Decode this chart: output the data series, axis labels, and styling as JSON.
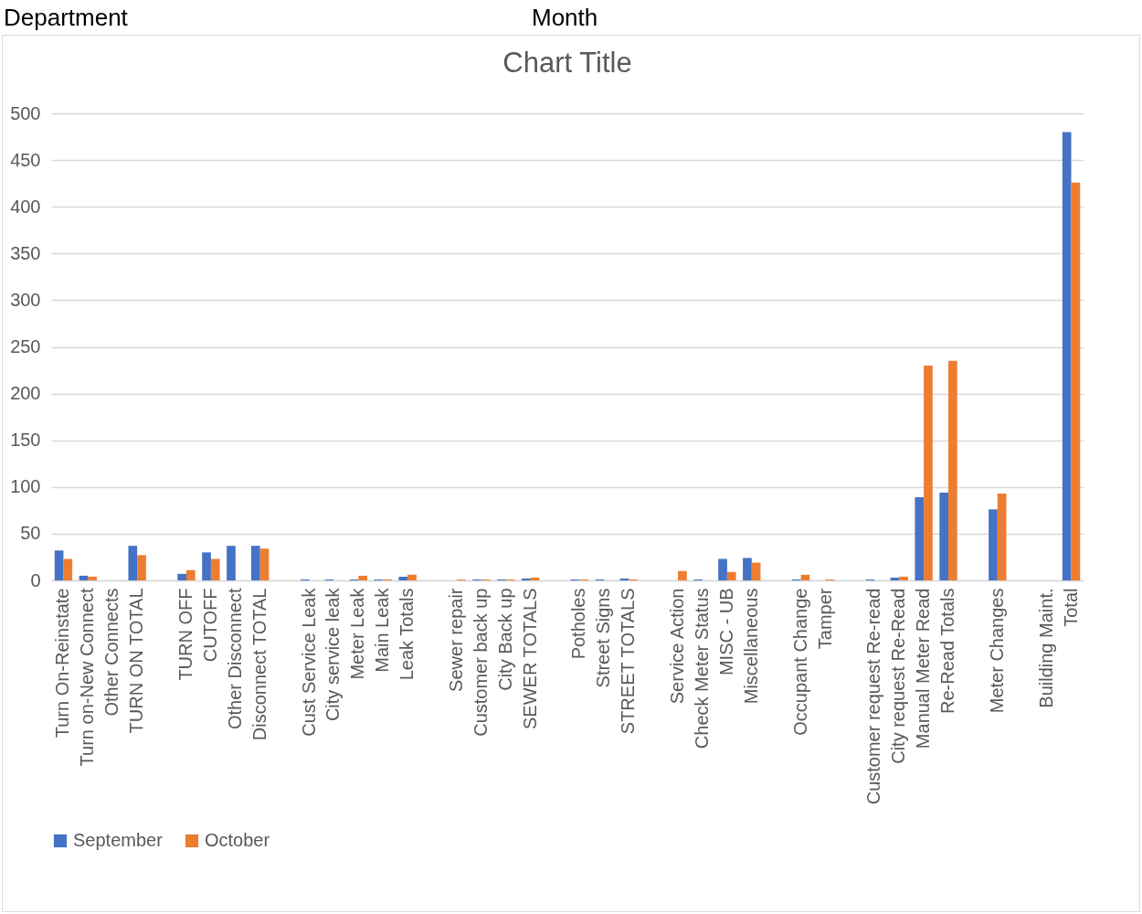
{
  "chart_data": {
    "type": "bar",
    "title": "Chart Title",
    "annotations": [
      "Department",
      "Month"
    ],
    "categories": [
      "Turn On-Reinstate",
      "Turn on-New Connect",
      "Other Connects",
      "TURN ON TOTAL",
      null,
      "TURN OFF",
      "CUTOFF",
      "Other Disconnect",
      "Disconnect TOTAL",
      null,
      "Cust Service Leak",
      "City service leak",
      "Meter Leak",
      "Main Leak",
      "Leak Totals",
      null,
      "Sewer repair",
      "Customer back up",
      "City Back up",
      "SEWER TOTALS",
      null,
      "Potholes",
      "Street Signs",
      "STREET TOTALS",
      null,
      "Service Action",
      "Check Meter Status",
      "MISC - UB",
      "Miscellaneous",
      null,
      "Occupant Change",
      "Tamper",
      null,
      "Customer request Re-read",
      "City request Re-Read",
      "Manual Meter Read",
      "Re-Read Totals",
      null,
      "Meter Changes",
      null,
      "Building Maint.",
      "Total"
    ],
    "series": [
      {
        "name": "September",
        "color": "#4472c4",
        "values": [
          32,
          5,
          0,
          37,
          null,
          7,
          30,
          37,
          37,
          null,
          1,
          1,
          1,
          1,
          4,
          null,
          0,
          1,
          1,
          2,
          null,
          1,
          1,
          2,
          null,
          0,
          1,
          23,
          24,
          null,
          1,
          0,
          null,
          1,
          3,
          89,
          94,
          null,
          76,
          null,
          0,
          480
        ]
      },
      {
        "name": "October",
        "color": "#ed7d31",
        "values": [
          23,
          4,
          0,
          27,
          null,
          11,
          23,
          0,
          34,
          null,
          0,
          0,
          5,
          1,
          6,
          null,
          1,
          1,
          1,
          3,
          null,
          1,
          0,
          1,
          null,
          10,
          0,
          9,
          19,
          null,
          6,
          1,
          null,
          0,
          4,
          230,
          235,
          null,
          93,
          null,
          0,
          426
        ]
      }
    ],
    "ylim": [
      0,
      500
    ],
    "yticks": [
      0,
      50,
      100,
      150,
      200,
      250,
      300,
      350,
      400,
      450,
      500
    ],
    "grid": "y",
    "legend": "bottom"
  }
}
